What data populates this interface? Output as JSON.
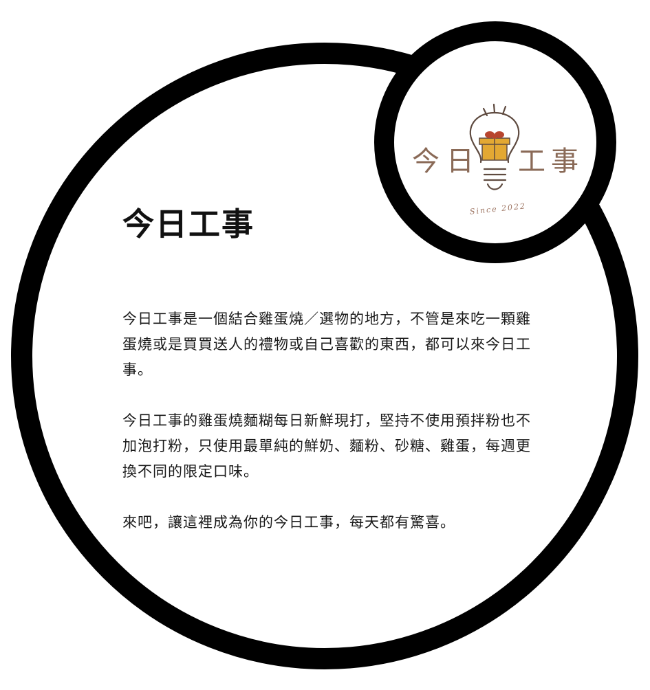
{
  "logo": {
    "chars": [
      "今",
      "日",
      "工",
      "事"
    ],
    "since_text": "Since 2022"
  },
  "title": "今日工事",
  "paragraphs": [
    "今日工事是一個結合雞蛋燒／選物的地方，不管是來吃一顆雞蛋燒或是買買送人的禮物或自己喜歡的東西，都可以來今日工事。",
    "今日工事的雞蛋燒麵糊每日新鮮現打，堅持不使用預拌粉也不加泡打粉，只使用最單純的鮮奶、麵粉、砂糖、雞蛋，每週更換不同的限定口味。",
    "來吧，讓這裡成為你的今日工事，每天都有驚喜。"
  ],
  "colors": {
    "ring": "#000000",
    "logo_text": "#8a6a57",
    "gift_box": "#e3a833",
    "bow": "#b8452e"
  },
  "icons": {
    "logo_mark": "lightbulb-gift-icon"
  }
}
